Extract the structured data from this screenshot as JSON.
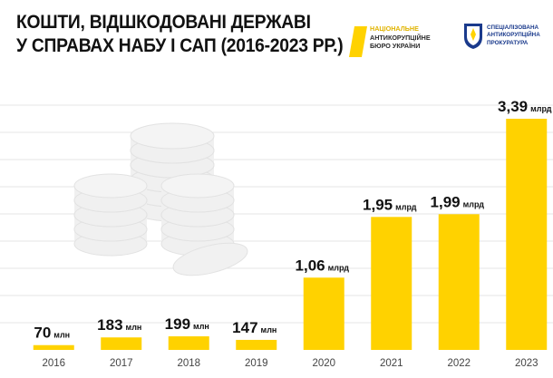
{
  "header": {
    "title_line1": "КОШТИ, ВІДШКОДОВАНІ ДЕРЖАВІ",
    "title_line2": "У СПРАВАХ НАБУ І САП (2016-2023 РР.)"
  },
  "logos": {
    "nabu": {
      "line1": "НАЦІОНАЛЬНЕ",
      "line2": "АНТИКОРУПЦІЙНЕ",
      "line3": "БЮРО УКРАЇНИ"
    },
    "sap": {
      "line1": "СПЕЦІАЛІЗОВАНА",
      "line2": "АНТИКОРУПЦІЙНА",
      "line3": "ПРОКУРАТУРА"
    }
  },
  "colors": {
    "bar": "#ffd200",
    "grid": "#e6e6e6",
    "coins": "#f0f0f0",
    "text": "#111111",
    "axis_text": "#444444",
    "sap_blue": "#1a3a8c"
  },
  "chart_data": {
    "type": "bar",
    "title": "КОШТИ, ВІДШКОДОВАНІ ДЕРЖАВІ У СПРАВАХ НАБУ І САП (2016-2023 РР.)",
    "categories": [
      "2016",
      "2017",
      "2018",
      "2019",
      "2020",
      "2021",
      "2022",
      "2023"
    ],
    "values": [
      0.07,
      0.183,
      0.199,
      0.147,
      1.06,
      1.95,
      1.99,
      3.39
    ],
    "unit": "млрд",
    "labels": [
      {
        "num": "70",
        "unit": "млн"
      },
      {
        "num": "183",
        "unit": "млн"
      },
      {
        "num": "199",
        "unit": "млн"
      },
      {
        "num": "147",
        "unit": "млн"
      },
      {
        "num": "1,06",
        "unit": "млрд"
      },
      {
        "num": "1,95",
        "unit": "млрд"
      },
      {
        "num": "1,99",
        "unit": "млрд"
      },
      {
        "num": "3,39",
        "unit": "млрд"
      }
    ],
    "xlabel": "",
    "ylabel": "",
    "ylim": [
      0,
      4
    ],
    "grid": true
  }
}
